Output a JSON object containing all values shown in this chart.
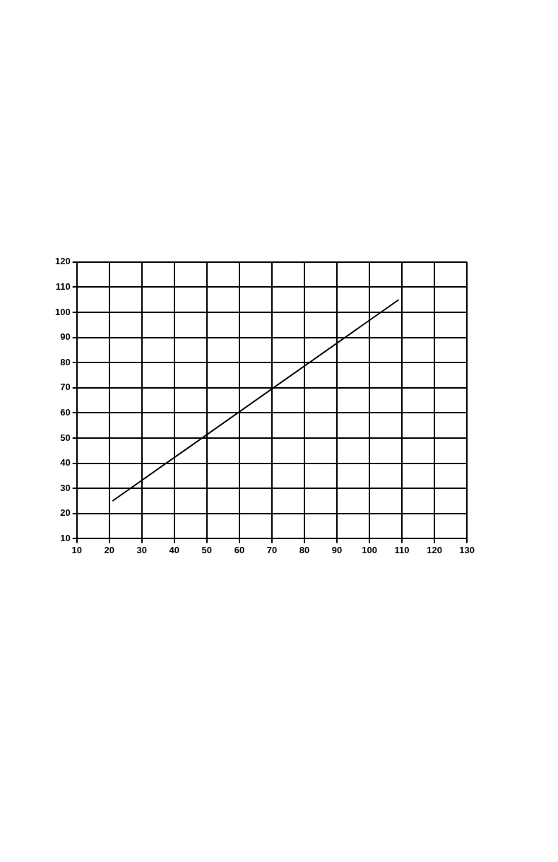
{
  "chart_data": {
    "type": "line",
    "x": [
      21,
      109
    ],
    "series": [
      {
        "color": "#000000",
        "values": [
          25,
          105
        ]
      }
    ],
    "xlim": [
      10,
      130
    ],
    "xticks": [
      10,
      20,
      30,
      40,
      50,
      60,
      70,
      80,
      90,
      100,
      110,
      120,
      130
    ],
    "ylim": [
      10,
      120
    ],
    "yticks": [
      10,
      20,
      30,
      40,
      50,
      60,
      70,
      80,
      90,
      100,
      110,
      120
    ],
    "grid": true,
    "legend": false,
    "marker": "none",
    "line_style": "solid"
  }
}
